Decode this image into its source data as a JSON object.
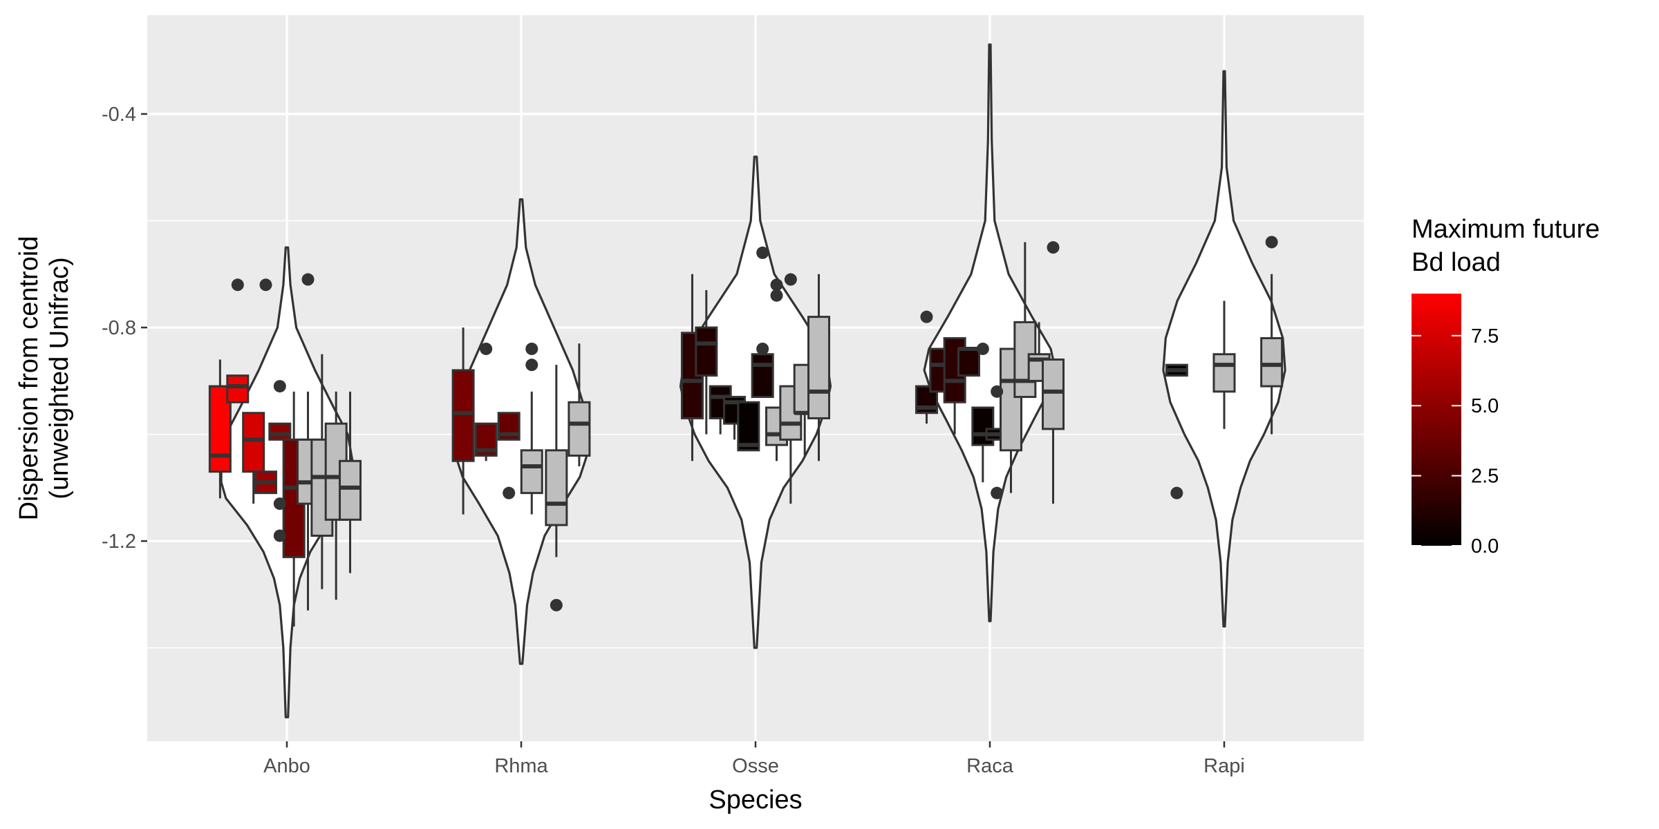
{
  "chart_data": {
    "type": "violin+boxplot",
    "xlabel": "Species",
    "ylabel_line1": "Dispersion from centroid",
    "ylabel_line2": "(unweighted Unifrac)",
    "categories": [
      "Anbo",
      "Rhma",
      "Osse",
      "Raca",
      "Rapi"
    ],
    "y_ticks": [
      -0.4,
      -0.8,
      -1.2
    ],
    "y_tick_labels": [
      "-0.4",
      "-0.8",
      "-1.2"
    ],
    "ylim": [
      -1.575,
      -0.215
    ],
    "grid": true,
    "legend": {
      "title_line1": "Maximum future",
      "title_line2": "Bd load",
      "position": "right",
      "low_color": "#000000",
      "high_color": "#ff0000",
      "range": [
        0,
        9
      ],
      "ticks": [
        0.0,
        2.5,
        5.0,
        7.5
      ],
      "tick_labels": [
        "0.0",
        "2.5",
        "5.0",
        "7.5"
      ]
    },
    "colors": {
      "panel": "#ebebeb",
      "grid": "#ffffff",
      "violin_fill": "#ffffff",
      "violin_outline": "#333333",
      "na_fill": "#bebebe",
      "point": "#333333"
    },
    "violins": [
      {
        "species": "Anbo",
        "max": -0.65,
        "min": -1.53,
        "profile": [
          [
            -0.65,
            0.005
          ],
          [
            -0.72,
            0.015
          ],
          [
            -0.8,
            0.04
          ],
          [
            -0.88,
            0.12
          ],
          [
            -0.95,
            0.2
          ],
          [
            -1.0,
            0.26
          ],
          [
            -1.05,
            0.28
          ],
          [
            -1.09,
            0.28
          ],
          [
            -1.12,
            0.26
          ],
          [
            -1.17,
            0.17
          ],
          [
            -1.22,
            0.1
          ],
          [
            -1.27,
            0.055
          ],
          [
            -1.32,
            0.03
          ],
          [
            -1.4,
            0.015
          ],
          [
            -1.53,
            0.005
          ]
        ]
      },
      {
        "species": "Rhma",
        "max": -0.56,
        "min": -1.43,
        "profile": [
          [
            -0.56,
            0.005
          ],
          [
            -0.65,
            0.02
          ],
          [
            -0.72,
            0.06
          ],
          [
            -0.8,
            0.14
          ],
          [
            -0.88,
            0.22
          ],
          [
            -0.95,
            0.27
          ],
          [
            -1.0,
            0.28
          ],
          [
            -1.04,
            0.28
          ],
          [
            -1.08,
            0.25
          ],
          [
            -1.13,
            0.18
          ],
          [
            -1.19,
            0.1
          ],
          [
            -1.26,
            0.05
          ],
          [
            -1.32,
            0.025
          ],
          [
            -1.43,
            0.005
          ]
        ]
      },
      {
        "species": "Osse",
        "max": -0.48,
        "min": -1.4,
        "profile": [
          [
            -0.48,
            0.005
          ],
          [
            -0.6,
            0.02
          ],
          [
            -0.7,
            0.08
          ],
          [
            -0.78,
            0.2
          ],
          [
            -0.85,
            0.3
          ],
          [
            -0.91,
            0.32
          ],
          [
            -0.95,
            0.3
          ],
          [
            -1.0,
            0.26
          ],
          [
            -1.05,
            0.2
          ],
          [
            -1.1,
            0.12
          ],
          [
            -1.16,
            0.06
          ],
          [
            -1.24,
            0.025
          ],
          [
            -1.4,
            0.005
          ]
        ]
      },
      {
        "species": "Raca",
        "max": -0.27,
        "min": -1.35,
        "profile": [
          [
            -0.27,
            0.003
          ],
          [
            -0.45,
            0.008
          ],
          [
            -0.6,
            0.02
          ],
          [
            -0.7,
            0.08
          ],
          [
            -0.78,
            0.18
          ],
          [
            -0.84,
            0.26
          ],
          [
            -0.88,
            0.28
          ],
          [
            -0.92,
            0.25
          ],
          [
            -0.97,
            0.19
          ],
          [
            -1.03,
            0.12
          ],
          [
            -1.08,
            0.07
          ],
          [
            -1.14,
            0.035
          ],
          [
            -1.22,
            0.015
          ],
          [
            -1.35,
            0.003
          ]
        ]
      },
      {
        "species": "Rapi",
        "max": -0.32,
        "min": -1.36,
        "profile": [
          [
            -0.32,
            0.003
          ],
          [
            -0.5,
            0.01
          ],
          [
            -0.6,
            0.04
          ],
          [
            -0.68,
            0.12
          ],
          [
            -0.75,
            0.2
          ],
          [
            -0.82,
            0.25
          ],
          [
            -0.88,
            0.26
          ],
          [
            -0.94,
            0.23
          ],
          [
            -1.0,
            0.17
          ],
          [
            -1.05,
            0.11
          ],
          [
            -1.1,
            0.07
          ],
          [
            -1.16,
            0.035
          ],
          [
            -1.24,
            0.015
          ],
          [
            -1.36,
            0.003
          ]
        ]
      }
    ],
    "boxes": [
      {
        "species": "Anbo",
        "offset": -0.38,
        "q1": -1.07,
        "median": -1.04,
        "q3": -0.91,
        "wlo": -1.12,
        "whi": -0.86,
        "load": 9.0,
        "outliers": []
      },
      {
        "species": "Anbo",
        "offset": -0.28,
        "q1": -0.94,
        "median": -0.91,
        "q3": -0.89,
        "wlo": -0.94,
        "whi": -0.89,
        "load": 8.5,
        "outliers": [
          -0.72
        ]
      },
      {
        "species": "Anbo",
        "offset": -0.19,
        "q1": -1.07,
        "median": -1.01,
        "q3": -0.96,
        "wlo": -1.13,
        "whi": -0.96,
        "load": 7.5,
        "outliers": []
      },
      {
        "species": "Anbo",
        "offset": -0.12,
        "q1": -1.11,
        "median": -1.09,
        "q3": -1.07,
        "wlo": -1.11,
        "whi": -1.07,
        "load": 5.5,
        "outliers": [
          -0.72
        ]
      },
      {
        "species": "Anbo",
        "offset": -0.04,
        "q1": -1.01,
        "median": -1.0,
        "q3": -0.98,
        "wlo": -1.01,
        "whi": -0.98,
        "load": 5.0,
        "outliers": [
          -0.91,
          -1.13,
          -1.19
        ]
      },
      {
        "species": "Anbo",
        "offset": 0.04,
        "q1": -1.23,
        "median": -1.1,
        "q3": -1.01,
        "wlo": -1.36,
        "whi": -0.92,
        "load": 4.0,
        "outliers": []
      },
      {
        "species": "Anbo",
        "offset": 0.12,
        "q1": -1.13,
        "median": -1.09,
        "q3": -1.01,
        "wlo": -1.33,
        "whi": -0.92,
        "load": null,
        "outliers": [
          -0.71
        ]
      },
      {
        "species": "Anbo",
        "offset": 0.2,
        "q1": -1.19,
        "median": -1.08,
        "q3": -1.01,
        "wlo": -1.29,
        "whi": -0.85,
        "load": null,
        "outliers": []
      },
      {
        "species": "Anbo",
        "offset": 0.28,
        "q1": -1.16,
        "median": -1.08,
        "q3": -0.98,
        "wlo": -1.31,
        "whi": -0.92,
        "load": null,
        "outliers": []
      },
      {
        "species": "Anbo",
        "offset": 0.36,
        "q1": -1.16,
        "median": -1.1,
        "q3": -1.05,
        "wlo": -1.26,
        "whi": -0.92,
        "load": null,
        "outliers": []
      },
      {
        "species": "Rhma",
        "offset": -0.33,
        "q1": -1.05,
        "median": -0.96,
        "q3": -0.88,
        "wlo": -1.15,
        "whi": -0.8,
        "load": 4.2,
        "outliers": []
      },
      {
        "species": "Rhma",
        "offset": -0.2,
        "q1": -1.04,
        "median": -1.03,
        "q3": -0.98,
        "wlo": -1.05,
        "whi": -0.98,
        "load": 4.0,
        "outliers": [
          -0.84
        ]
      },
      {
        "species": "Rhma",
        "offset": -0.07,
        "q1": -1.01,
        "median": -1.0,
        "q3": -0.96,
        "wlo": -1.01,
        "whi": -0.96,
        "load": 3.6,
        "outliers": [
          -1.11
        ]
      },
      {
        "species": "Rhma",
        "offset": 0.06,
        "q1": -1.11,
        "median": -1.06,
        "q3": -1.03,
        "wlo": -1.15,
        "whi": -0.92,
        "load": null,
        "outliers": [
          -0.84,
          -0.87
        ]
      },
      {
        "species": "Rhma",
        "offset": 0.2,
        "q1": -1.17,
        "median": -1.13,
        "q3": -1.03,
        "wlo": -1.23,
        "whi": -0.87,
        "load": null,
        "outliers": [
          -1.32
        ]
      },
      {
        "species": "Rhma",
        "offset": 0.33,
        "q1": -1.04,
        "median": -0.98,
        "q3": -0.94,
        "wlo": -1.06,
        "whi": -0.83,
        "load": null,
        "outliers": []
      },
      {
        "species": "Osse",
        "offset": -0.36,
        "q1": -0.97,
        "median": -0.9,
        "q3": -0.81,
        "wlo": -1.05,
        "whi": -0.7,
        "load": 1.5,
        "outliers": []
      },
      {
        "species": "Osse",
        "offset": -0.28,
        "q1": -0.89,
        "median": -0.83,
        "q3": -0.8,
        "wlo": -1.0,
        "whi": -0.73,
        "load": 1.2,
        "outliers": []
      },
      {
        "species": "Osse",
        "offset": -0.2,
        "q1": -0.97,
        "median": -0.93,
        "q3": -0.91,
        "wlo": -1.0,
        "whi": -0.91,
        "load": 0.6,
        "outliers": []
      },
      {
        "species": "Osse",
        "offset": -0.12,
        "q1": -0.98,
        "median": -0.94,
        "q3": -0.93,
        "wlo": -1.01,
        "whi": -0.93,
        "load": 0.4,
        "outliers": []
      },
      {
        "species": "Osse",
        "offset": -0.04,
        "q1": -1.03,
        "median": -1.02,
        "q3": -0.94,
        "wlo": -1.03,
        "whi": -0.94,
        "load": 0.2,
        "outliers": []
      },
      {
        "species": "Osse",
        "offset": 0.04,
        "q1": -0.93,
        "median": -0.87,
        "q3": -0.85,
        "wlo": -0.93,
        "whi": -0.85,
        "load": 0.8,
        "outliers": [
          -0.66,
          -0.84
        ]
      },
      {
        "species": "Osse",
        "offset": 0.12,
        "q1": -1.02,
        "median": -1.0,
        "q3": -0.95,
        "wlo": -1.05,
        "whi": -0.95,
        "load": null,
        "outliers": [
          -0.72,
          -0.74
        ]
      },
      {
        "species": "Osse",
        "offset": 0.2,
        "q1": -1.01,
        "median": -0.98,
        "q3": -0.91,
        "wlo": -1.13,
        "whi": -0.91,
        "load": null,
        "outliers": [
          -0.71
        ]
      },
      {
        "species": "Osse",
        "offset": 0.28,
        "q1": -0.96,
        "median": -0.96,
        "q3": -0.87,
        "wlo": -1.04,
        "whi": -0.87,
        "load": null,
        "outliers": []
      },
      {
        "species": "Osse",
        "offset": 0.36,
        "q1": -0.97,
        "median": -0.92,
        "q3": -0.78,
        "wlo": -1.05,
        "whi": -0.7,
        "load": null,
        "outliers": []
      },
      {
        "species": "Raca",
        "offset": -0.36,
        "q1": -0.96,
        "median": -0.95,
        "q3": -0.91,
        "wlo": -0.98,
        "whi": -0.91,
        "load": 1.0,
        "outliers": [
          -0.78
        ]
      },
      {
        "species": "Raca",
        "offset": -0.28,
        "q1": -0.92,
        "median": -0.87,
        "q3": -0.84,
        "wlo": -0.92,
        "whi": -0.84,
        "load": 1.5,
        "outliers": []
      },
      {
        "species": "Raca",
        "offset": -0.2,
        "q1": -0.94,
        "median": -0.9,
        "q3": -0.82,
        "wlo": -1.0,
        "whi": -0.82,
        "load": 1.6,
        "outliers": []
      },
      {
        "species": "Raca",
        "offset": -0.12,
        "q1": -0.89,
        "median": -0.84,
        "q3": -0.84,
        "wlo": -0.89,
        "whi": -0.84,
        "load": 1.2,
        "outliers": []
      },
      {
        "species": "Raca",
        "offset": -0.04,
        "q1": -1.02,
        "median": -1.0,
        "q3": -0.95,
        "wlo": -1.09,
        "whi": -0.95,
        "load": 0.3,
        "outliers": [
          -0.84
        ]
      },
      {
        "species": "Raca",
        "offset": 0.04,
        "q1": -1.01,
        "median": -1.0,
        "q3": -0.99,
        "wlo": -1.01,
        "whi": -0.99,
        "load": 0.5,
        "outliers": [
          -0.92,
          -1.11
        ]
      },
      {
        "species": "Raca",
        "offset": 0.12,
        "q1": -1.03,
        "median": -0.9,
        "q3": -0.84,
        "wlo": -1.11,
        "whi": -0.84,
        "load": null,
        "outliers": []
      },
      {
        "species": "Raca",
        "offset": 0.2,
        "q1": -0.93,
        "median": -0.9,
        "q3": -0.79,
        "wlo": -0.93,
        "whi": -0.64,
        "load": null,
        "outliers": []
      },
      {
        "species": "Raca",
        "offset": 0.28,
        "q1": -0.9,
        "median": -0.86,
        "q3": -0.85,
        "wlo": -0.9,
        "whi": -0.79,
        "load": null,
        "outliers": []
      },
      {
        "species": "Raca",
        "offset": 0.36,
        "q1": -0.99,
        "median": -0.92,
        "q3": -0.86,
        "wlo": -1.13,
        "whi": -0.86,
        "load": null,
        "outliers": [
          -0.65
        ]
      },
      {
        "species": "Rapi",
        "offset": -0.27,
        "q1": -0.89,
        "median": -0.88,
        "q3": -0.87,
        "wlo": -0.89,
        "whi": -0.87,
        "load": 0.0,
        "outliers": [
          -1.11
        ]
      },
      {
        "species": "Rapi",
        "offset": 0.0,
        "q1": -0.92,
        "median": -0.87,
        "q3": -0.85,
        "wlo": -0.99,
        "whi": -0.75,
        "load": null,
        "outliers": []
      },
      {
        "species": "Rapi",
        "offset": 0.27,
        "q1": -0.91,
        "median": -0.87,
        "q3": -0.82,
        "wlo": -1.0,
        "whi": -0.7,
        "load": null,
        "outliers": [
          -0.64
        ]
      }
    ]
  }
}
